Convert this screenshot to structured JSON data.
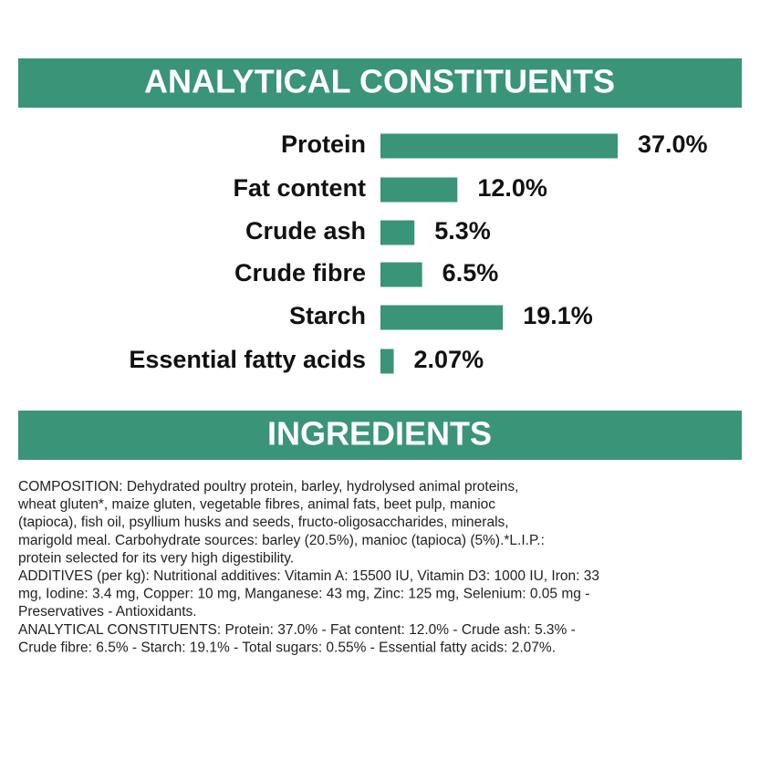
{
  "chart_data": {
    "type": "hbar",
    "title": "ANALYTICAL CONSTITUENTS",
    "color": "#3a9478",
    "categories": [
      "Protein",
      "Fat content",
      "Crude ash",
      "Crude fibre",
      "Starch",
      "Essential fatty acids"
    ],
    "values": [
      37.0,
      12.0,
      5.3,
      6.5,
      19.1,
      2.07
    ],
    "value_labels": [
      "37.0%",
      "12.0%",
      "5.3%",
      "6.5%",
      "19.1%",
      "2.07%"
    ]
  },
  "ingredients": {
    "title": "INGREDIENTS",
    "lines": [
      "COMPOSITION: Dehydrated poultry protein, barley, hydrolysed animal proteins,",
      "wheat gluten*, maize gluten, vegetable fibres, animal fats, beet pulp, manioc",
      "(tapioca), fish oil, psyllium husks and seeds, fructo-oligosaccharides, minerals,",
      "marigold meal. Carbohydrate sources: barley (20.5%), manioc (tapioca) (5%).*L.I.P.:",
      "protein selected for its very high digestibility.",
      "ADDITIVES (per kg): Nutritional additives: Vitamin A: 15500 IU, Vitamin D3: 1000 IU, Iron: 33",
      "mg, Iodine: 3.4 mg, Copper: 10 mg, Manganese: 43 mg, Zinc: 125 mg, Selenium: 0.05 mg -",
      "Preservatives - Antioxidants.",
      "ANALYTICAL CONSTITUENTS: Protein: 37.0% - Fat content: 12.0% - Crude ash: 5.3% -",
      "Crude fibre: 6.5% - Starch: 19.1% - Total sugars: 0.55% - Essential fatty acids: 2.07%."
    ]
  }
}
